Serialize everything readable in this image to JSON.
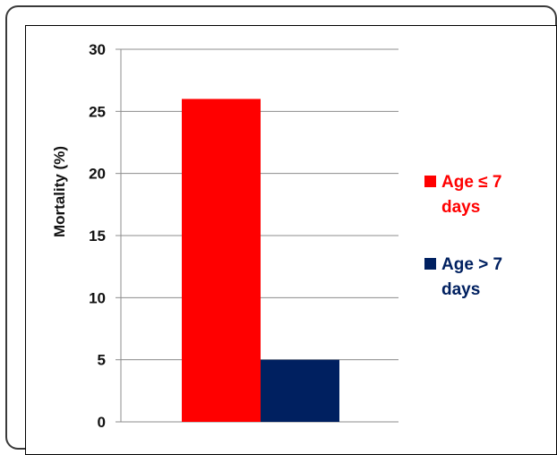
{
  "chart_data": {
    "type": "bar",
    "title": "",
    "xlabel": "",
    "ylabel": "Mortality (%)",
    "ylim": [
      0,
      30
    ],
    "yticks": [
      0,
      5,
      10,
      15,
      20,
      25,
      30
    ],
    "grid": true,
    "legend_position": "right",
    "categories": [
      ""
    ],
    "series": [
      {
        "name": "Age ≤ 7 days",
        "legend_lines": [
          "Age ≤ 7",
          "days"
        ],
        "values": [
          26
        ],
        "color": "#ff0000"
      },
      {
        "name": "Age > 7 days",
        "legend_lines": [
          "Age > 7",
          "days"
        ],
        "values": [
          5
        ],
        "color": "#002060"
      }
    ]
  }
}
